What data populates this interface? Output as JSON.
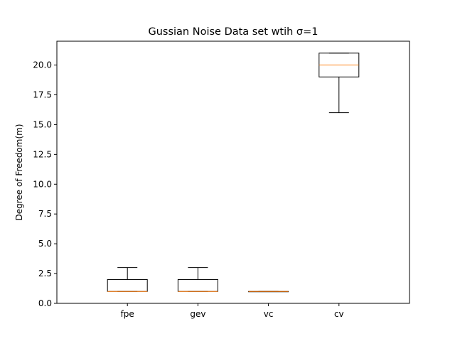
{
  "chart_data": {
    "type": "boxplot",
    "title": "Gussian Noise Data set wtih σ=1",
    "xlabel": "",
    "ylabel": "Degree of Freedom(m)",
    "ylim": [
      0,
      22
    ],
    "yticks": [
      0.0,
      2.5,
      5.0,
      7.5,
      10.0,
      12.5,
      15.0,
      17.5,
      20.0
    ],
    "ytick_labels": [
      "0.0",
      "2.5",
      "5.0",
      "7.5",
      "10.0",
      "12.5",
      "15.0",
      "17.5",
      "20.0"
    ],
    "grid": false,
    "categories": [
      "fpe",
      "gev",
      "vc",
      "cv"
    ],
    "boxes": [
      {
        "label": "fpe",
        "whisker_low": 1,
        "q1": 1,
        "median": 1,
        "q3": 2,
        "whisker_high": 3
      },
      {
        "label": "gev",
        "whisker_low": 1,
        "q1": 1,
        "median": 1,
        "q3": 2,
        "whisker_high": 3
      },
      {
        "label": "vc",
        "whisker_low": 1,
        "q1": 1,
        "median": 1,
        "q3": 1,
        "whisker_high": 1
      },
      {
        "label": "cv",
        "whisker_low": 16,
        "q1": 19,
        "median": 20,
        "q3": 21,
        "whisker_high": 21
      }
    ],
    "colors": {
      "box": "#000000",
      "median": "#ff7f0e"
    }
  }
}
